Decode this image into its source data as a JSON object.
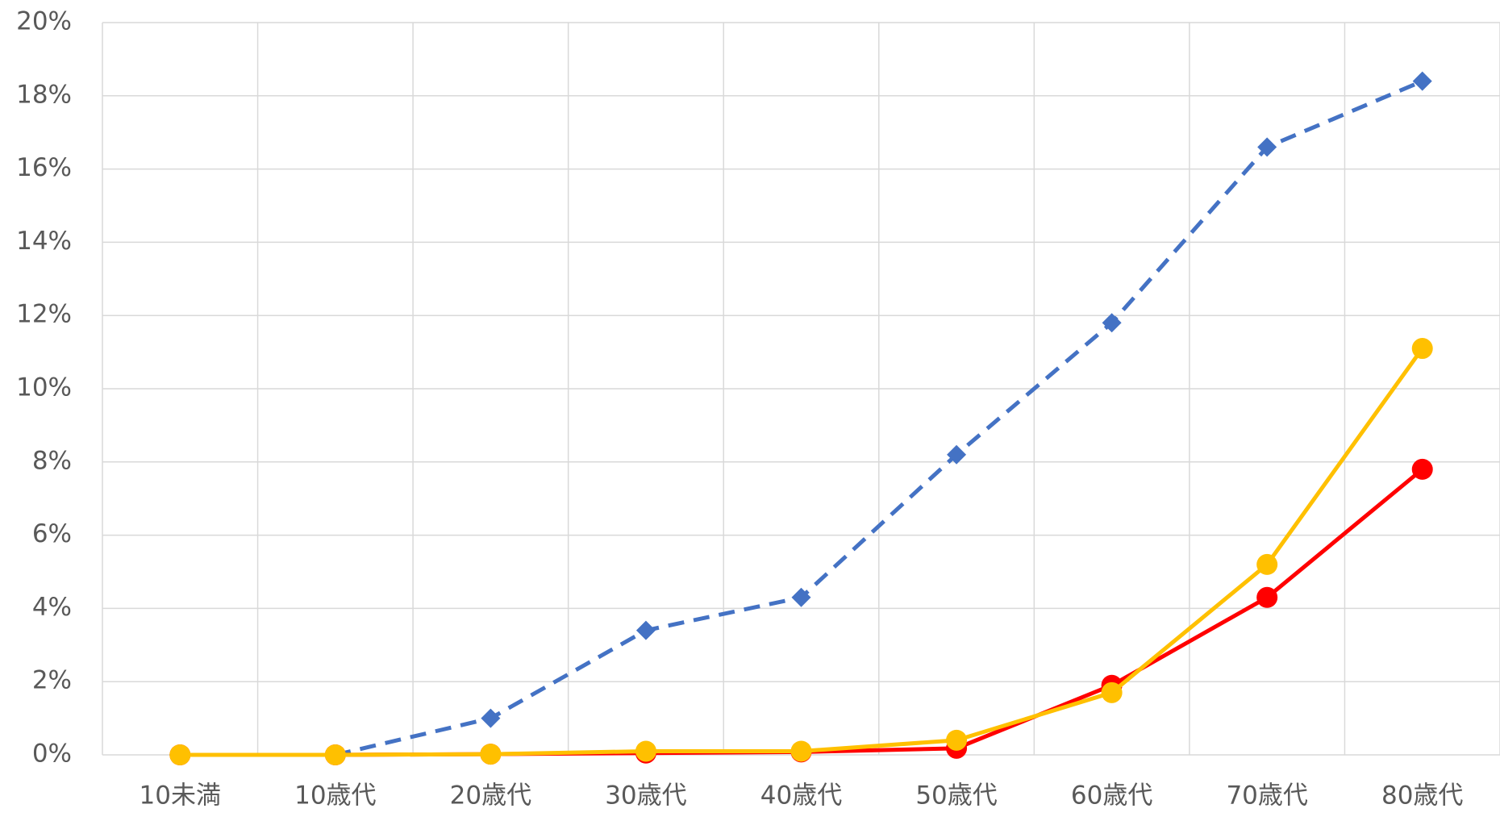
{
  "chart_data": {
    "type": "line",
    "categories": [
      "10未満",
      "10歳代",
      "20歳代",
      "30歳代",
      "40歳代",
      "50歳代",
      "60歳代",
      "70歳代",
      "80歳代"
    ],
    "series": [
      {
        "color": "#4472c4",
        "dashed": true,
        "marker": "diamond",
        "values": [
          0,
          0,
          1.0,
          3.4,
          4.3,
          8.2,
          11.8,
          16.6,
          18.4
        ]
      },
      {
        "color": "#ff0000",
        "dashed": false,
        "marker": "circle",
        "values": [
          0,
          0,
          0.02,
          0.05,
          0.08,
          0.18,
          1.9,
          4.3,
          7.8
        ]
      },
      {
        "color": "#ffc000",
        "dashed": false,
        "marker": "circle",
        "values": [
          0,
          0,
          0.02,
          0.1,
          0.1,
          0.4,
          1.7,
          5.2,
          11.1
        ]
      }
    ],
    "ylim": [
      0,
      20
    ],
    "yticks": [
      {
        "value": 0,
        "label": "0%"
      },
      {
        "value": 2,
        "label": "2%"
      },
      {
        "value": 4,
        "label": "4%"
      },
      {
        "value": 6,
        "label": "6%"
      },
      {
        "value": 8,
        "label": "8%"
      },
      {
        "value": 10,
        "label": "10%"
      },
      {
        "value": 12,
        "label": "12%"
      },
      {
        "value": 14,
        "label": "14%"
      },
      {
        "value": 16,
        "label": "16%"
      },
      {
        "value": 18,
        "label": "18%"
      },
      {
        "value": 20,
        "label": "20%"
      }
    ],
    "grid": true
  }
}
